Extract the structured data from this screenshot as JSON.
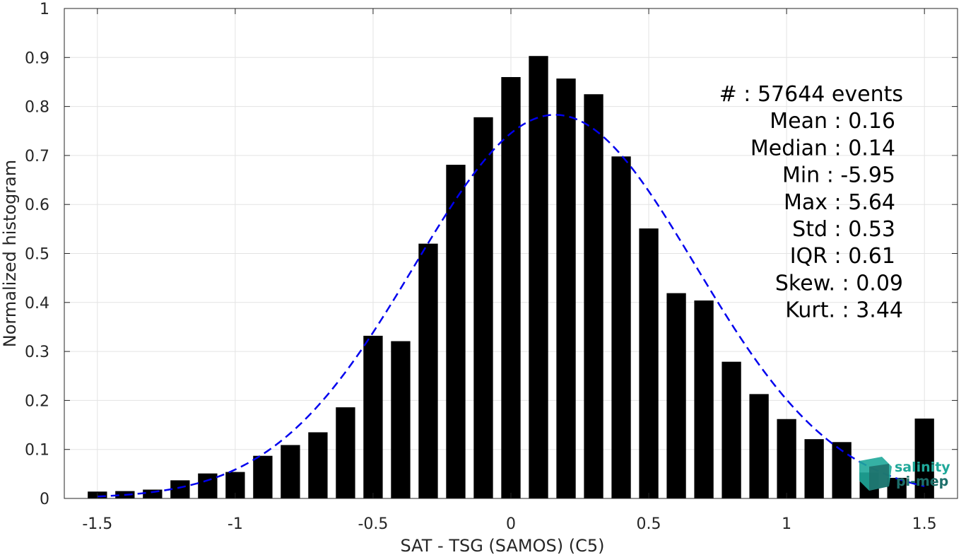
{
  "chart_data": {
    "type": "bar",
    "xlabel": "SAT - TSG (SAMOS) (C5)",
    "ylabel": "Normalized histogram",
    "xlim": [
      -1.62,
      1.62
    ],
    "ylim": [
      0,
      1
    ],
    "x_ticks": [
      -1.5,
      -1,
      -0.5,
      0,
      0.5,
      1,
      1.5
    ],
    "x_tick_labels": [
      "-1.5",
      "-1",
      "-0.5",
      "0",
      "0.5",
      "1",
      "1.5"
    ],
    "y_ticks": [
      0,
      0.1,
      0.2,
      0.3,
      0.4,
      0.5,
      0.6,
      0.7,
      0.8,
      0.9,
      1
    ],
    "y_tick_labels": [
      "0",
      "0.1",
      "0.2",
      "0.3",
      "0.4",
      "0.5",
      "0.6",
      "0.7",
      "0.8",
      "0.9",
      "1"
    ],
    "grid": true,
    "bar_color": "#000000",
    "bars": {
      "x": [
        -1.5,
        -1.4,
        -1.3,
        -1.2,
        -1.1,
        -1.0,
        -0.9,
        -0.8,
        -0.7,
        -0.6,
        -0.5,
        -0.4,
        -0.3,
        -0.2,
        -0.1,
        0.0,
        0.1,
        0.2,
        0.3,
        0.4,
        0.5,
        0.6,
        0.7,
        0.8,
        0.9,
        1.0,
        1.1,
        1.2,
        1.3,
        1.4,
        1.5
      ],
      "values": [
        0.014,
        0.015,
        0.018,
        0.037,
        0.051,
        0.054,
        0.087,
        0.109,
        0.135,
        0.186,
        0.332,
        0.321,
        0.52,
        0.681,
        0.778,
        0.86,
        0.903,
        0.857,
        0.825,
        0.698,
        0.551,
        0.419,
        0.404,
        0.279,
        0.213,
        0.162,
        0.121,
        0.115,
        0.053,
        0.042,
        0.163
      ]
    },
    "fit_curve": {
      "type": "normal",
      "mean": 0.16,
      "peak": 0.783,
      "std": 0.51,
      "color": "#0000ee",
      "style": "dashed"
    },
    "stats_lines": [
      "#  : 57644 events",
      "Mean : 0.16",
      "Median : 0.14",
      "Min : -5.95",
      "Max : 5.64",
      "Std : 0.53",
      "IQR : 0.61",
      "Skew. : 0.09",
      "Kurt. : 3.44"
    ]
  },
  "logo": {
    "line1": "salinity",
    "line2": "pi-mep",
    "color_primary": "#1fa89a",
    "color_secondary": "#1d6f6a"
  }
}
